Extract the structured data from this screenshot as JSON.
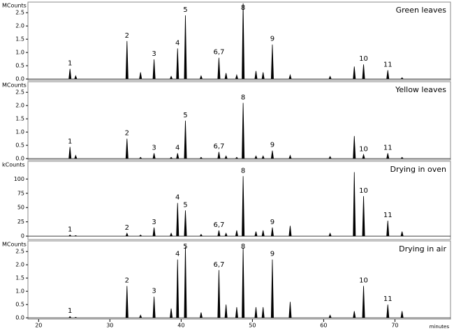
{
  "chart_data": [
    {
      "type": "chromatogram",
      "title": "Green leaves",
      "y_label": "MCounts",
      "color": "#000000",
      "x": [
        24.4,
        25.2,
        32.4,
        34.3,
        36.2,
        38.6,
        39.5,
        40.6,
        42.8,
        45.3,
        46.3,
        47.8,
        48.7,
        50.5,
        51.5,
        52.8,
        55.3,
        60.9,
        64.3,
        65.6,
        69.0,
        71.0
      ],
      "peak_labels": [
        "1",
        null,
        "2",
        null,
        "3",
        null,
        "4",
        "5",
        null,
        "6,7",
        null,
        null,
        "8",
        null,
        null,
        "9",
        null,
        null,
        null,
        "10",
        "11",
        null
      ],
      "values": [
        0.38,
        0.12,
        1.43,
        0.25,
        0.74,
        0.1,
        1.15,
        2.4,
        0.12,
        0.8,
        0.22,
        0.15,
        2.85,
        0.3,
        0.25,
        1.3,
        0.15,
        0.1,
        0.47,
        0.55,
        0.33,
        0.05
      ],
      "xlim": [
        18.5,
        77.8
      ],
      "ylim": [
        -0.05,
        2.9
      ],
      "yticks": [
        {
          "value": 0,
          "label": "0.0"
        },
        {
          "value": 0.5,
          "label": "0.5"
        },
        {
          "value": 1,
          "label": "1.0"
        },
        {
          "value": 1.5,
          "label": "1.5"
        },
        {
          "value": 2,
          "label": "2.0"
        },
        {
          "value": 2.5,
          "label": "2.5"
        }
      ]
    },
    {
      "type": "chromatogram",
      "title": "Yellow leaves",
      "y_label": "MCounts",
      "color": "#000000",
      "x": [
        24.4,
        25.2,
        32.4,
        34.3,
        36.2,
        38.6,
        39.5,
        40.6,
        42.8,
        45.3,
        46.3,
        47.8,
        48.7,
        50.5,
        51.5,
        52.8,
        55.3,
        60.9,
        64.3,
        65.6,
        69.0,
        71.0
      ],
      "peak_labels": [
        "1",
        null,
        "2",
        null,
        "3",
        null,
        "4",
        "5",
        null,
        "6,7",
        null,
        null,
        "8",
        null,
        null,
        "9",
        null,
        null,
        null,
        "10",
        "11",
        null
      ],
      "values": [
        0.44,
        0.12,
        0.75,
        0.05,
        0.2,
        0.05,
        0.2,
        1.43,
        0.05,
        0.25,
        0.1,
        0.05,
        2.1,
        0.1,
        0.1,
        0.3,
        0.12,
        0.08,
        0.85,
        0.15,
        0.2,
        0.05
      ],
      "xlim": [
        18.5,
        77.8
      ],
      "ylim": [
        -0.05,
        2.9
      ],
      "yticks": [
        {
          "value": 0,
          "label": "0.0"
        },
        {
          "value": 0.5,
          "label": "0.5"
        },
        {
          "value": 1,
          "label": "1.0"
        },
        {
          "value": 1.5,
          "label": "1.5"
        },
        {
          "value": 2,
          "label": "2.0"
        },
        {
          "value": 2.5,
          "label": "2.5"
        }
      ]
    },
    {
      "type": "chromatogram",
      "title": "Drying in oven",
      "y_label": "kCounts",
      "color": "#000000",
      "x": [
        24.4,
        25.2,
        32.4,
        34.3,
        36.2,
        38.6,
        39.5,
        40.6,
        42.8,
        45.3,
        46.3,
        47.8,
        48.7,
        50.5,
        51.5,
        52.8,
        55.3,
        60.9,
        64.3,
        65.6,
        69.0,
        71.0
      ],
      "peak_labels": [
        "1",
        null,
        "2",
        null,
        "3",
        null,
        "4",
        "5",
        null,
        "6,7",
        null,
        null,
        "8",
        null,
        null,
        "9",
        null,
        null,
        null,
        "10",
        "11",
        null
      ],
      "values": [
        2,
        1,
        5,
        2,
        15,
        5,
        58,
        45,
        3,
        10,
        5,
        10,
        105,
        8,
        10,
        15,
        18,
        5,
        112,
        70,
        27,
        8
      ],
      "xlim": [
        18.5,
        77.8
      ],
      "ylim": [
        -6,
        131
      ],
      "yticks": [
        0,
        25,
        50,
        75,
        100
      ]
    },
    {
      "type": "chromatogram",
      "title": "Drying in air",
      "y_label": "MCounts",
      "color": "#000000",
      "x": [
        24.4,
        25.2,
        32.4,
        34.3,
        36.2,
        38.6,
        39.5,
        40.6,
        42.8,
        45.3,
        46.3,
        47.8,
        48.7,
        50.5,
        51.5,
        52.8,
        55.3,
        60.9,
        64.3,
        65.6,
        69.0,
        71.0
      ],
      "peak_labels": [
        "1",
        null,
        "2",
        null,
        "3",
        null,
        "4",
        "5",
        null,
        "6,7",
        null,
        null,
        "8",
        null,
        null,
        "9",
        null,
        null,
        null,
        "10",
        "11",
        null
      ],
      "values": [
        0.05,
        0.02,
        1.2,
        0.1,
        0.8,
        0.35,
        2.2,
        2.7,
        0.2,
        1.8,
        0.5,
        0.4,
        2.65,
        0.4,
        0.4,
        2.2,
        0.6,
        0.1,
        0.25,
        1.2,
        0.5,
        0.25
      ],
      "xlim": [
        18.5,
        77.8
      ],
      "ylim": [
        -0.05,
        2.9
      ],
      "yticks": [
        {
          "value": 0,
          "label": "0.0"
        },
        {
          "value": 0.5,
          "label": "0.5"
        },
        {
          "value": 1,
          "label": "1.0"
        },
        {
          "value": 1.5,
          "label": "1.5"
        },
        {
          "value": 2,
          "label": "2.0"
        },
        {
          "value": 2.5,
          "label": "2.5"
        }
      ],
      "xticks": [
        20,
        30,
        40,
        50,
        60,
        70
      ],
      "x_label": "minutes"
    }
  ]
}
